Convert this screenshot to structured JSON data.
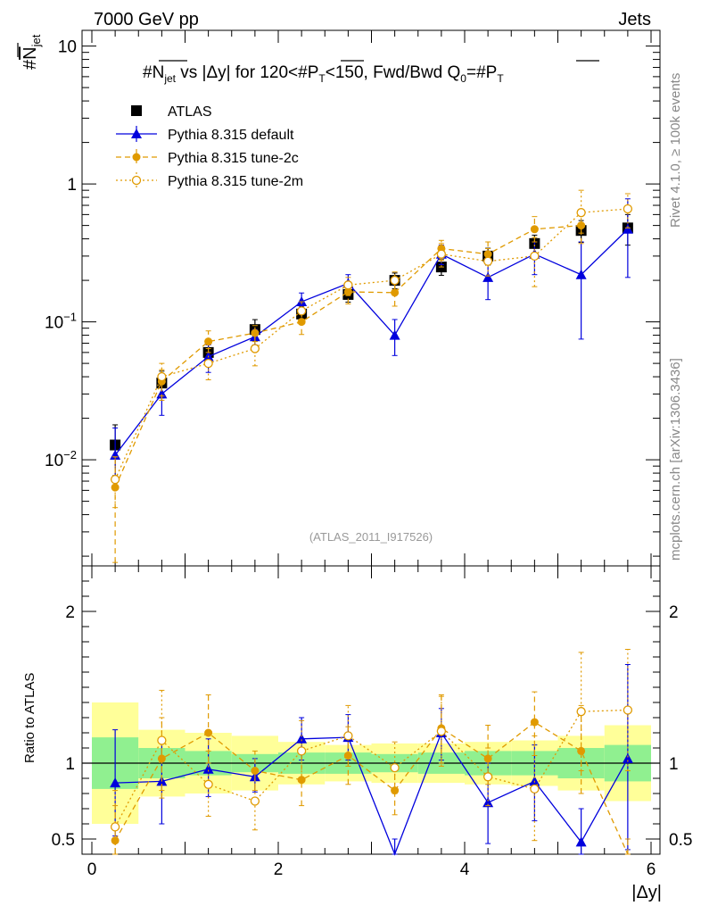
{
  "header": {
    "left": "7000 GeV pp",
    "right": "Jets"
  },
  "side_text": {
    "top": "Rivet 4.1.0, ≥ 100k events",
    "bottom": "mcplots.cern.ch [arXiv:1306.3436]"
  },
  "watermark": "(ATLAS_2011_I917526)",
  "title": {
    "main": "#N̅jet vs |Δy| for 120<#P̅T<150, Fwd/Bwd Q0=#P̅T",
    "p1": "#",
    "n": "N",
    "jet": "jet",
    "p2": " vs |Δy| for 120<#",
    "pt": "P",
    "T": "T",
    "p3": "<150, Fwd/Bwd Q",
    "zero": "0",
    "p4": "=#",
    "pt2": "P",
    "T2": "T"
  },
  "ylabel_main": {
    "hash": "#",
    "n": "N",
    "jet": "jet"
  },
  "ylabel_ratio": "Ratio to ATLAS",
  "xlabel": "|Δy|",
  "legend": [
    {
      "label": "ATLAS",
      "series": "atlas"
    },
    {
      "label": "Pythia 8.315 default",
      "series": "default"
    },
    {
      "label": "Pythia 8.315 tune-2c",
      "series": "tune2c"
    },
    {
      "label": "Pythia 8.315 tune-2m",
      "series": "tune2m"
    }
  ],
  "colors": {
    "atlas": "#000000",
    "default": "#0000dd",
    "tune2c": "#e09a00",
    "tune2m": "#e09a00",
    "band_green": "#90f090",
    "band_yellow": "#ffff99"
  },
  "chart_data": {
    "type": "scatter",
    "title": "#Njet vs |Δy| for 120<#PT<150, Fwd/Bwd Q0=#PT",
    "xlabel": "|Δy|",
    "ylabel": "#Njet",
    "xlim": [
      -0.15,
      6.1
    ],
    "ylim": [
      0.0017,
      13
    ],
    "yscale": "log",
    "x_ticks": [
      "0",
      "2",
      "4",
      "6"
    ],
    "y_ticks": [
      "10⁻²",
      "10⁻¹",
      "1",
      "10"
    ],
    "x": [
      0.25,
      0.75,
      1.25,
      1.75,
      2.25,
      2.75,
      3.25,
      3.75,
      4.25,
      4.75,
      5.25,
      5.75
    ],
    "series": [
      {
        "name": "ATLAS",
        "key": "atlas",
        "values": [
          0.0128,
          0.036,
          0.06,
          0.088,
          0.114,
          0.158,
          0.2,
          0.25,
          0.3,
          0.37,
          0.46,
          0.48
        ],
        "err_frac_stat": [
          0.15,
          0.1,
          0.08,
          0.06,
          0.07,
          0.07,
          0.06,
          0.07,
          0.08,
          0.08,
          0.1,
          0.12
        ],
        "err_frac_total": [
          0.4,
          0.22,
          0.2,
          0.18,
          0.14,
          0.12,
          0.13,
          0.13,
          0.14,
          0.15,
          0.18,
          0.25
        ]
      },
      {
        "name": "Pythia 8.315 default",
        "key": "default",
        "values": [
          0.0108,
          0.03,
          0.056,
          0.078,
          0.14,
          0.19,
          0.08,
          0.31,
          0.21,
          0.31,
          0.22,
          0.47
        ],
        "err_lo": [
          0.0063,
          0.021,
          0.043,
          0.068,
          0.122,
          0.168,
          0.057,
          0.26,
          0.145,
          0.22,
          0.075,
          0.21
        ],
        "err_hi": [
          0.017,
          0.039,
          0.068,
          0.088,
          0.162,
          0.22,
          0.104,
          0.36,
          0.275,
          0.38,
          0.38,
          0.78
        ]
      },
      {
        "name": "Pythia 8.315 tune-2c",
        "key": "tune2c",
        "values": [
          0.0063,
          0.037,
          0.072,
          0.083,
          0.1,
          0.165,
          0.163,
          0.34,
          0.31,
          0.47,
          0.5,
          null
        ],
        "err_lo": [
          0.0018,
          0.027,
          0.06,
          0.072,
          0.081,
          0.135,
          0.13,
          0.28,
          0.26,
          0.38,
          0.37,
          null
        ],
        "err_hi": [
          0.0105,
          0.045,
          0.086,
          0.094,
          0.118,
          0.195,
          0.205,
          0.39,
          0.38,
          0.58,
          0.65,
          null
        ]
      },
      {
        "name": "Pythia 8.315 tune-2m",
        "key": "tune2m",
        "values": [
          0.0072,
          0.04,
          0.05,
          0.064,
          0.12,
          0.185,
          0.2,
          0.31,
          0.275,
          0.3,
          0.62,
          0.66
        ],
        "err_lo": [
          0.0045,
          0.029,
          0.038,
          0.048,
          0.1,
          0.155,
          0.16,
          0.25,
          0.215,
          0.18,
          0.44,
          0.48
        ],
        "err_hi": [
          0.0105,
          0.05,
          0.064,
          0.08,
          0.14,
          0.21,
          0.23,
          0.37,
          0.34,
          0.41,
          0.9,
          0.85
        ]
      }
    ],
    "ratio": {
      "ylabel": "Ratio to ATLAS",
      "ylim": [
        0.4,
        2.3
      ],
      "y_ticks": [
        "0.5",
        "1",
        "2"
      ],
      "series": [
        {
          "key": "default",
          "values": [
            0.87,
            0.88,
            0.96,
            0.91,
            1.16,
            1.17,
            0.35,
            1.2,
            0.74,
            0.88,
            0.48,
            1.03
          ],
          "err_lo": [
            0.52,
            0.6,
            0.78,
            0.81,
            1.02,
            1.02,
            0.2,
            1.02,
            0.47,
            0.62,
            0.3,
            0.43
          ],
          "err_hi": [
            1.22,
            1.13,
            1.16,
            1.03,
            1.3,
            1.32,
            0.5,
            1.36,
            1.0,
            1.12,
            0.7,
            1.65
          ]
        },
        {
          "key": "tune2c",
          "values": [
            0.49,
            1.03,
            1.2,
            0.95,
            0.89,
            1.05,
            0.82,
            1.23,
            1.03,
            1.27,
            1.08,
            0.33
          ],
          "err_lo": [
            0.3,
            0.77,
            1.0,
            0.82,
            0.72,
            0.86,
            0.66,
            1.0,
            0.86,
            1.05,
            0.8,
            0.2
          ],
          "err_hi": [
            0.72,
            1.3,
            1.45,
            1.08,
            1.06,
            1.24,
            0.98,
            1.45,
            1.25,
            1.47,
            1.38,
            0.5
          ]
        },
        {
          "key": "tune2m",
          "values": [
            0.58,
            1.15,
            0.86,
            0.75,
            1.08,
            1.18,
            0.97,
            1.21,
            0.91,
            0.83,
            1.34,
            1.35
          ],
          "err_lo": [
            0.35,
            0.82,
            0.65,
            0.56,
            0.88,
            0.98,
            0.8,
            0.98,
            0.72,
            0.49,
            0.95,
            0.95
          ],
          "err_hi": [
            0.82,
            1.48,
            1.08,
            0.95,
            1.28,
            1.38,
            1.14,
            1.44,
            1.1,
            1.18,
            1.73,
            1.75
          ]
        }
      ],
      "band_bins": [
        [
          0,
          0.5
        ],
        [
          0.5,
          1
        ],
        [
          1,
          1.5
        ],
        [
          1.5,
          2
        ],
        [
          2,
          2.5
        ],
        [
          2.5,
          3
        ],
        [
          3,
          3.5
        ],
        [
          3.5,
          4
        ],
        [
          4,
          4.5
        ],
        [
          4.5,
          5
        ],
        [
          5,
          5.5
        ],
        [
          5.5,
          6
        ]
      ],
      "band_green": [
        [
          0.83,
          1.17
        ],
        [
          0.9,
          1.1
        ],
        [
          0.92,
          1.08
        ],
        [
          0.94,
          1.06
        ],
        [
          0.93,
          1.07
        ],
        [
          0.93,
          1.07
        ],
        [
          0.94,
          1.06
        ],
        [
          0.93,
          1.07
        ],
        [
          0.92,
          1.08
        ],
        [
          0.92,
          1.08
        ],
        [
          0.9,
          1.1
        ],
        [
          0.88,
          1.12
        ]
      ],
      "band_yellow": [
        [
          0.6,
          1.4
        ],
        [
          0.78,
          1.22
        ],
        [
          0.8,
          1.2
        ],
        [
          0.82,
          1.18
        ],
        [
          0.86,
          1.14
        ],
        [
          0.88,
          1.12
        ],
        [
          0.87,
          1.13
        ],
        [
          0.87,
          1.13
        ],
        [
          0.86,
          1.14
        ],
        [
          0.85,
          1.15
        ],
        [
          0.82,
          1.18
        ],
        [
          0.75,
          1.25
        ]
      ]
    }
  }
}
